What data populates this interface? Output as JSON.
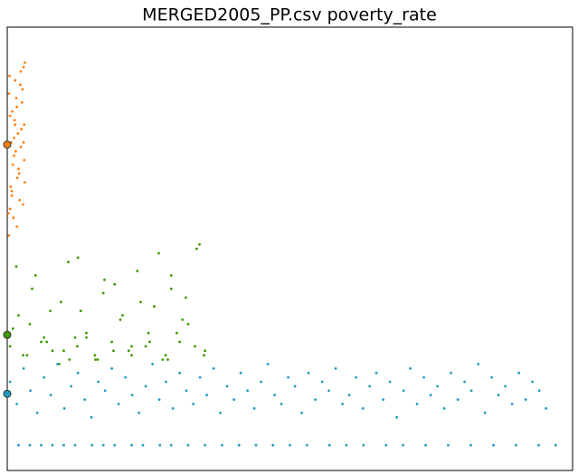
{
  "chart_data": {
    "type": "scatter",
    "title": "MERGED2005_PP.csv  poverty_rate",
    "xlim": [
      0,
      100
    ],
    "ylim": [
      0,
      100
    ],
    "series": [
      {
        "color": "#ff7f0e",
        "x": [
          0.3,
          1.2,
          2.4,
          0.8,
          3.0,
          1.7,
          0.5,
          2.1,
          2.9,
          1.4,
          0.2,
          2.6,
          1.0,
          3.1,
          1.9,
          0.6,
          2.3,
          1.5,
          2.8,
          0.9,
          1.8,
          0.4,
          2.5,
          1.1,
          3.0,
          1.6,
          0.7,
          2.2,
          1.3,
          2.7,
          0.3,
          2.0,
          1.2,
          2.9,
          0.8,
          1.7,
          2.4,
          0.5,
          3.1,
          1.4
        ],
        "y": [
          85,
          71,
          90,
          62,
          78,
          55,
          80,
          67,
          74,
          88,
          58,
          83,
          69,
          92,
          76,
          64,
          87,
          72,
          60,
          81,
          66,
          89,
          77,
          57,
          70,
          84,
          74,
          61,
          79,
          86,
          53,
          68,
          75,
          91,
          63,
          82,
          73,
          59,
          65,
          78
        ]
      },
      {
        "color": "#3a9a00",
        "x": [
          0.5,
          2,
          3.5,
          5,
          6.5,
          8,
          9.5,
          11,
          12.5,
          14,
          15.5,
          17,
          18.5,
          20,
          21.5,
          23,
          24.5,
          26,
          27.5,
          29,
          30.5,
          32,
          33.5,
          35,
          1,
          2.8,
          4.4,
          6,
          7.6,
          9.2,
          10.8,
          12.4,
          14,
          15.6,
          17.2,
          18.8,
          20.4,
          22,
          23.6,
          25.2,
          26.8,
          28.4,
          30,
          31.6,
          33.2,
          34.8,
          1.6,
          4,
          7,
          10,
          13,
          16,
          19,
          22,
          25,
          28,
          31,
          34,
          12,
          29
        ],
        "y": [
          28,
          35,
          26,
          44,
          30,
          27,
          38,
          25,
          48,
          31,
          26,
          40,
          29,
          34,
          27,
          45,
          28,
          37,
          25,
          41,
          29,
          33,
          50,
          27,
          32,
          26,
          41,
          29,
          36,
          24,
          47,
          28,
          30,
          25,
          43,
          27,
          35,
          26,
          38,
          29,
          49,
          25,
          31,
          39,
          28,
          26,
          46,
          33,
          29,
          27,
          36,
          25,
          42,
          28,
          31,
          26,
          34,
          51,
          30,
          44
        ]
      },
      {
        "color": "#1f9bc4",
        "x": [
          0.5,
          1.7,
          2.9,
          4.1,
          5.3,
          6.5,
          7.7,
          8.9,
          10.1,
          11.3,
          12.5,
          13.7,
          14.9,
          16.1,
          17.3,
          18.5,
          19.7,
          20.9,
          22.1,
          23.3,
          24.5,
          25.7,
          26.9,
          28.1,
          29.3,
          30.5,
          31.7,
          32.9,
          34.1,
          35.3,
          36.5,
          37.7,
          38.9,
          40.1,
          41.3,
          42.5,
          43.7,
          44.9,
          46.1,
          47.3,
          48.5,
          49.7,
          50.9,
          52.1,
          53.3,
          54.5,
          55.7,
          56.9,
          58.1,
          59.3,
          60.5,
          61.7,
          62.9,
          64.1,
          65.3,
          66.5,
          67.7,
          68.9,
          70.1,
          71.3,
          72.5,
          73.7,
          74.9,
          76.1,
          77.3,
          78.5,
          79.7,
          80.9,
          82.1,
          83.3,
          84.5,
          85.7,
          86.9,
          88.1,
          89.3,
          90.5,
          91.7,
          92.9,
          94.1,
          95.3
        ],
        "y": [
          20,
          15,
          23,
          18,
          13,
          21,
          17,
          24,
          14,
          19,
          22,
          16,
          12,
          20,
          18,
          23,
          15,
          21,
          17,
          13,
          19,
          24,
          16,
          20,
          14,
          22,
          18,
          15,
          21,
          17,
          23,
          13,
          19,
          16,
          22,
          18,
          14,
          20,
          24,
          17,
          15,
          21,
          19,
          13,
          22,
          16,
          20,
          18,
          23,
          15,
          17,
          21,
          14,
          19,
          22,
          16,
          20,
          12,
          18,
          23,
          15,
          21,
          17,
          19,
          14,
          22,
          16,
          20,
          18,
          24,
          13,
          21,
          17,
          19,
          15,
          22,
          16,
          20,
          18,
          14
        ]
      },
      {
        "color": "#1f9bc4",
        "x": [
          2,
          4,
          6,
          8,
          10,
          12,
          15,
          17,
          19,
          22,
          24,
          27,
          29,
          32,
          35,
          38,
          41,
          44,
          47,
          50,
          53,
          57,
          60,
          63,
          67,
          70,
          74,
          78,
          82,
          86,
          90,
          94,
          97
        ],
        "y": [
          5.7,
          5.7,
          5.7,
          5.7,
          5.7,
          5.7,
          5.7,
          5.7,
          5.7,
          5.7,
          5.7,
          5.7,
          5.7,
          5.7,
          5.7,
          5.7,
          5.7,
          5.7,
          5.7,
          5.7,
          5.7,
          5.7,
          5.7,
          5.7,
          5.7,
          5.7,
          5.7,
          5.7,
          5.7,
          5.7,
          5.7,
          5.7,
          5.7
        ]
      }
    ],
    "highlights": [
      {
        "color": "#ff7f0e",
        "x": 0,
        "y": 73.5
      },
      {
        "color": "#3a9a00",
        "x": 0,
        "y": 30.6
      },
      {
        "color": "#1f9bc4",
        "x": 0,
        "y": 17.3
      }
    ]
  }
}
